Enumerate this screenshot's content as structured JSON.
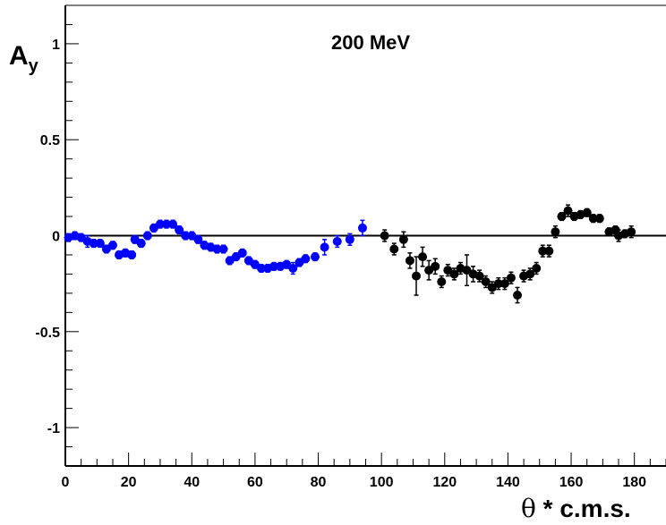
{
  "chart_data": {
    "type": "scatter",
    "title": "200 MeV",
    "ylabel": "A",
    "ylabel_sub": "y",
    "xlabel_symbol": "θ",
    "xlabel_text": " * c.m.s.",
    "xlim": [
      0,
      190
    ],
    "ylim": [
      -1.2,
      1.2
    ],
    "x_ticks": [
      0,
      20,
      40,
      60,
      80,
      100,
      120,
      140,
      160,
      180
    ],
    "x_tick_labels": [
      "0",
      "20",
      "40",
      "60",
      "80",
      "100",
      "120",
      "140",
      "160",
      "180"
    ],
    "y_ticks": [
      -1,
      -0.5,
      0,
      0.5,
      1
    ],
    "y_tick_labels": [
      "-1",
      "-0.5",
      "0",
      "0.5",
      "1"
    ],
    "reference_line_y": 0,
    "grid": false,
    "series": [
      {
        "color": "#0000ff",
        "points": [
          {
            "x": 1,
            "y": -0.01,
            "err": 0.02
          },
          {
            "x": 3,
            "y": 0.0,
            "err": 0.02
          },
          {
            "x": 5,
            "y": -0.01,
            "err": 0.02
          },
          {
            "x": 7,
            "y": -0.03,
            "err": 0.03
          },
          {
            "x": 9,
            "y": -0.04,
            "err": 0.02
          },
          {
            "x": 11,
            "y": -0.04,
            "err": 0.02
          },
          {
            "x": 13,
            "y": -0.07,
            "err": 0.02
          },
          {
            "x": 15,
            "y": -0.05,
            "err": 0.02
          },
          {
            "x": 17,
            "y": -0.1,
            "err": 0.02
          },
          {
            "x": 19,
            "y": -0.09,
            "err": 0.02
          },
          {
            "x": 21,
            "y": -0.1,
            "err": 0.02
          },
          {
            "x": 22,
            "y": -0.02,
            "err": 0.02
          },
          {
            "x": 24,
            "y": -0.04,
            "err": 0.02
          },
          {
            "x": 26,
            "y": 0.0,
            "err": 0.02
          },
          {
            "x": 28,
            "y": 0.04,
            "err": 0.02
          },
          {
            "x": 30,
            "y": 0.06,
            "err": 0.02
          },
          {
            "x": 32,
            "y": 0.06,
            "err": 0.02
          },
          {
            "x": 34,
            "y": 0.06,
            "err": 0.02
          },
          {
            "x": 36,
            "y": 0.03,
            "err": 0.02
          },
          {
            "x": 38,
            "y": 0.0,
            "err": 0.02
          },
          {
            "x": 40,
            "y": 0.0,
            "err": 0.02
          },
          {
            "x": 42,
            "y": -0.02,
            "err": 0.02
          },
          {
            "x": 44,
            "y": -0.05,
            "err": 0.02
          },
          {
            "x": 46,
            "y": -0.06,
            "err": 0.02
          },
          {
            "x": 48,
            "y": -0.07,
            "err": 0.02
          },
          {
            "x": 50,
            "y": -0.07,
            "err": 0.02
          },
          {
            "x": 52,
            "y": -0.13,
            "err": 0.02
          },
          {
            "x": 54,
            "y": -0.11,
            "err": 0.02
          },
          {
            "x": 56,
            "y": -0.09,
            "err": 0.02
          },
          {
            "x": 58,
            "y": -0.13,
            "err": 0.02
          },
          {
            "x": 60,
            "y": -0.15,
            "err": 0.02
          },
          {
            "x": 62,
            "y": -0.17,
            "err": 0.02
          },
          {
            "x": 64,
            "y": -0.17,
            "err": 0.02
          },
          {
            "x": 66,
            "y": -0.16,
            "err": 0.02
          },
          {
            "x": 68,
            "y": -0.16,
            "err": 0.02
          },
          {
            "x": 70,
            "y": -0.15,
            "err": 0.02
          },
          {
            "x": 72,
            "y": -0.17,
            "err": 0.03
          },
          {
            "x": 74,
            "y": -0.14,
            "err": 0.02
          },
          {
            "x": 76,
            "y": -0.12,
            "err": 0.02
          },
          {
            "x": 79,
            "y": -0.11,
            "err": 0.02
          },
          {
            "x": 82,
            "y": -0.06,
            "err": 0.04
          },
          {
            "x": 86,
            "y": -0.03,
            "err": 0.03
          },
          {
            "x": 90,
            "y": -0.02,
            "err": 0.03
          },
          {
            "x": 94,
            "y": 0.04,
            "err": 0.04
          }
        ]
      },
      {
        "color": "#000000",
        "points": [
          {
            "x": 101,
            "y": 0.0,
            "err": 0.03
          },
          {
            "x": 104,
            "y": -0.07,
            "err": 0.03
          },
          {
            "x": 107,
            "y": -0.02,
            "err": 0.04
          },
          {
            "x": 109,
            "y": -0.13,
            "err": 0.04
          },
          {
            "x": 111,
            "y": -0.21,
            "err": 0.1
          },
          {
            "x": 113,
            "y": -0.11,
            "err": 0.05
          },
          {
            "x": 115,
            "y": -0.18,
            "err": 0.05
          },
          {
            "x": 117,
            "y": -0.16,
            "err": 0.04
          },
          {
            "x": 119,
            "y": -0.24,
            "err": 0.03
          },
          {
            "x": 121,
            "y": -0.18,
            "err": 0.03
          },
          {
            "x": 123,
            "y": -0.2,
            "err": 0.03
          },
          {
            "x": 125,
            "y": -0.17,
            "err": 0.03
          },
          {
            "x": 127,
            "y": -0.18,
            "err": 0.08
          },
          {
            "x": 129,
            "y": -0.2,
            "err": 0.04
          },
          {
            "x": 131,
            "y": -0.21,
            "err": 0.03
          },
          {
            "x": 133,
            "y": -0.24,
            "err": 0.03
          },
          {
            "x": 135,
            "y": -0.27,
            "err": 0.03
          },
          {
            "x": 137,
            "y": -0.25,
            "err": 0.03
          },
          {
            "x": 139,
            "y": -0.25,
            "err": 0.03
          },
          {
            "x": 141,
            "y": -0.22,
            "err": 0.03
          },
          {
            "x": 143,
            "y": -0.31,
            "err": 0.04
          },
          {
            "x": 145,
            "y": -0.21,
            "err": 0.03
          },
          {
            "x": 147,
            "y": -0.2,
            "err": 0.03
          },
          {
            "x": 149,
            "y": -0.17,
            "err": 0.03
          },
          {
            "x": 151,
            "y": -0.08,
            "err": 0.03
          },
          {
            "x": 153,
            "y": -0.08,
            "err": 0.03
          },
          {
            "x": 155,
            "y": 0.02,
            "err": 0.03
          },
          {
            "x": 157,
            "y": 0.1,
            "err": 0.02
          },
          {
            "x": 159,
            "y": 0.13,
            "err": 0.03
          },
          {
            "x": 161,
            "y": 0.1,
            "err": 0.02
          },
          {
            "x": 163,
            "y": 0.11,
            "err": 0.02
          },
          {
            "x": 165,
            "y": 0.12,
            "err": 0.02
          },
          {
            "x": 167,
            "y": 0.09,
            "err": 0.02
          },
          {
            "x": 169,
            "y": 0.09,
            "err": 0.02
          },
          {
            "x": 172,
            "y": 0.02,
            "err": 0.02
          },
          {
            "x": 174,
            "y": 0.03,
            "err": 0.02
          },
          {
            "x": 175,
            "y": 0.0,
            "err": 0.03
          },
          {
            "x": 177,
            "y": 0.01,
            "err": 0.02
          },
          {
            "x": 179,
            "y": 0.02,
            "err": 0.03
          }
        ]
      }
    ]
  }
}
